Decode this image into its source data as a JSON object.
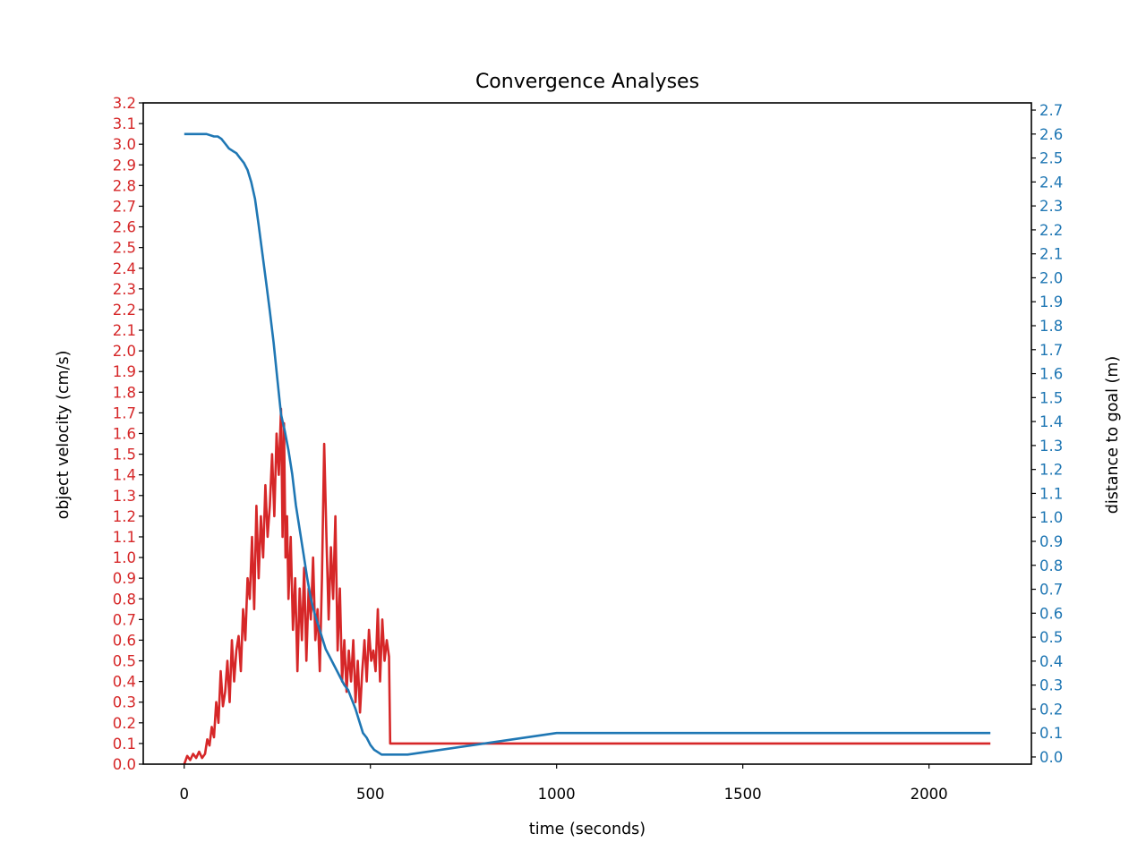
{
  "chart_data": {
    "type": "line",
    "title": "Convergence Analyses",
    "xlabel": "time (seconds)",
    "ylabel_left": "object velocity (cm/s)",
    "ylabel_right": "distance to goal (m)",
    "xlim": [
      -110,
      2275
    ],
    "ylim_left": [
      0,
      3.2
    ],
    "ylim_right": [
      -0.03,
      2.73
    ],
    "x_ticks": [
      0,
      500,
      1000,
      1500,
      2000
    ],
    "y_ticks_left": [
      "0.0",
      "0.1",
      "0.2",
      "0.3",
      "0.4",
      "0.5",
      "0.6",
      "0.7",
      "0.8",
      "0.9",
      "1.0",
      "1.1",
      "1.2",
      "1.3",
      "1.4",
      "1.5",
      "1.6",
      "1.7",
      "1.8",
      "1.9",
      "2.0",
      "2.1",
      "2.2",
      "2.3",
      "2.4",
      "2.5",
      "2.6",
      "2.7",
      "2.8",
      "2.9",
      "3.0",
      "3.1",
      "3.2"
    ],
    "y_ticks_right": [
      "0.0",
      "0.1",
      "0.2",
      "0.3",
      "0.4",
      "0.5",
      "0.6",
      "0.7",
      "0.8",
      "0.9",
      "1.0",
      "1.1",
      "1.2",
      "1.3",
      "1.4",
      "1.5",
      "1.6",
      "1.7",
      "1.8",
      "1.9",
      "2.0",
      "2.1",
      "2.2",
      "2.3",
      "2.4",
      "2.5",
      "2.6",
      "2.7"
    ],
    "grid": false,
    "colors": {
      "velocity": "#d62728",
      "distance": "#1f77b4",
      "axes": "#000000"
    },
    "series": [
      {
        "axis": "left",
        "x": [
          0,
          8,
          16,
          24,
          32,
          40,
          48,
          56,
          62,
          68,
          74,
          80,
          86,
          92,
          98,
          104,
          110,
          116,
          122,
          128,
          134,
          140,
          146,
          152,
          158,
          164,
          170,
          176,
          182,
          188,
          194,
          200,
          206,
          212,
          218,
          224,
          230,
          236,
          242,
          248,
          254,
          260,
          264,
          268,
          272,
          276,
          280,
          286,
          292,
          298,
          304,
          310,
          316,
          322,
          328,
          334,
          340,
          346,
          352,
          358,
          364,
          370,
          376,
          382,
          388,
          394,
          400,
          406,
          412,
          418,
          424,
          430,
          436,
          442,
          448,
          454,
          460,
          466,
          472,
          478,
          484,
          490,
          496,
          502,
          508,
          514,
          520,
          526,
          532,
          538,
          544,
          550,
          553,
          556,
          600,
          1000,
          1500,
          2000,
          2165
        ],
        "y": [
          0.0,
          0.04,
          0.02,
          0.05,
          0.03,
          0.06,
          0.03,
          0.05,
          0.12,
          0.09,
          0.18,
          0.13,
          0.3,
          0.2,
          0.45,
          0.28,
          0.35,
          0.5,
          0.3,
          0.6,
          0.4,
          0.55,
          0.62,
          0.45,
          0.75,
          0.6,
          0.9,
          0.8,
          1.1,
          0.75,
          1.25,
          0.9,
          1.2,
          1.0,
          1.35,
          1.1,
          1.25,
          1.5,
          1.2,
          1.6,
          1.4,
          1.72,
          1.1,
          1.65,
          1.0,
          1.2,
          0.8,
          1.1,
          0.65,
          0.9,
          0.45,
          0.85,
          0.6,
          0.95,
          0.5,
          0.85,
          0.7,
          1.0,
          0.6,
          0.75,
          0.45,
          0.9,
          1.55,
          1.1,
          0.7,
          1.05,
          0.8,
          1.2,
          0.55,
          0.85,
          0.4,
          0.6,
          0.35,
          0.55,
          0.4,
          0.6,
          0.3,
          0.5,
          0.25,
          0.45,
          0.6,
          0.4,
          0.65,
          0.5,
          0.55,
          0.45,
          0.75,
          0.4,
          0.7,
          0.5,
          0.6,
          0.52,
          0.1,
          0.1,
          0.1,
          0.1,
          0.1,
          0.1,
          0.1
        ]
      },
      {
        "axis": "right",
        "x": [
          0,
          30,
          60,
          80,
          90,
          100,
          110,
          120,
          130,
          140,
          150,
          160,
          170,
          180,
          190,
          200,
          210,
          220,
          230,
          240,
          250,
          260,
          270,
          280,
          290,
          300,
          310,
          320,
          330,
          340,
          350,
          360,
          370,
          380,
          390,
          400,
          410,
          420,
          430,
          440,
          450,
          460,
          470,
          480,
          490,
          500,
          510,
          520,
          530,
          540,
          550,
          560,
          600,
          1000,
          1500,
          2000,
          2165
        ],
        "y": [
          2.6,
          2.6,
          2.6,
          2.59,
          2.59,
          2.58,
          2.56,
          2.54,
          2.53,
          2.52,
          2.5,
          2.48,
          2.45,
          2.4,
          2.33,
          2.22,
          2.1,
          1.98,
          1.86,
          1.73,
          1.58,
          1.43,
          1.36,
          1.28,
          1.18,
          1.05,
          0.95,
          0.85,
          0.75,
          0.66,
          0.6,
          0.55,
          0.5,
          0.45,
          0.42,
          0.39,
          0.36,
          0.33,
          0.3,
          0.28,
          0.24,
          0.2,
          0.15,
          0.1,
          0.08,
          0.05,
          0.03,
          0.02,
          0.01,
          0.01,
          0.01,
          0.01,
          0.01,
          0.1,
          0.1,
          0.1,
          0.1
        ]
      }
    ]
  }
}
